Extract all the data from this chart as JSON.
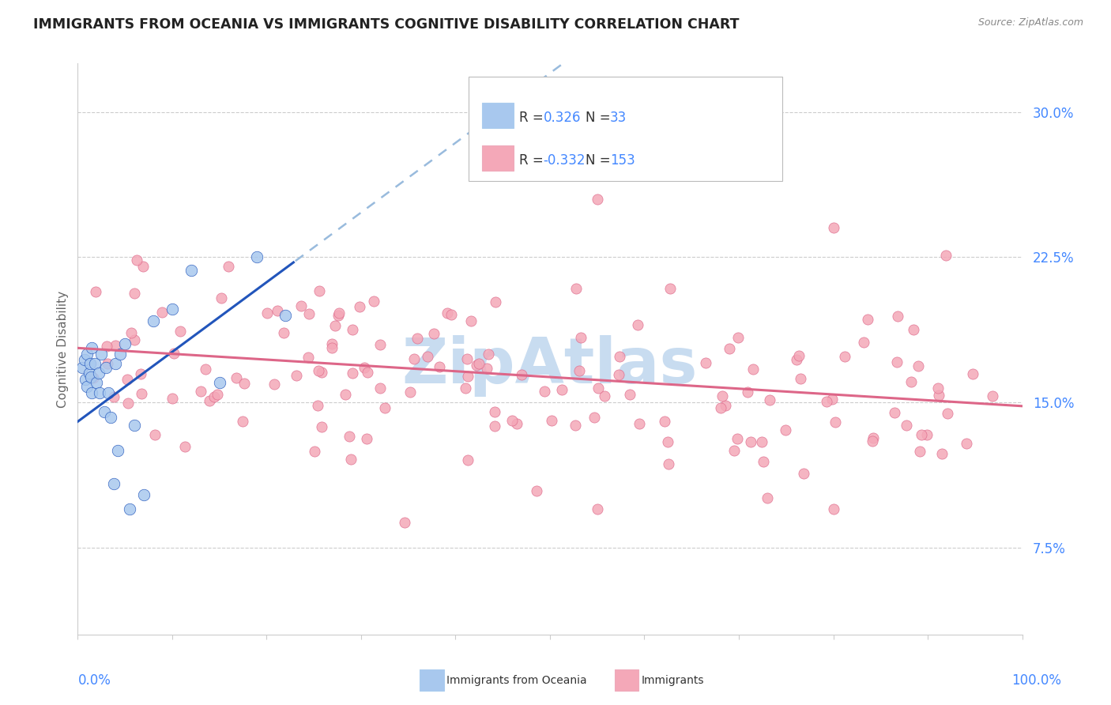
{
  "title": "IMMIGRANTS FROM OCEANIA VS IMMIGRANTS COGNITIVE DISABILITY CORRELATION CHART",
  "source": "Source: ZipAtlas.com",
  "ylabel": "Cognitive Disability",
  "xlim": [
    0.0,
    1.0
  ],
  "ylim": [
    0.03,
    0.325
  ],
  "ytick_vals": [
    0.075,
    0.15,
    0.225,
    0.3
  ],
  "ytick_labels": [
    "7.5%",
    "15.0%",
    "22.5%",
    "30.0%"
  ],
  "blue_R": 0.326,
  "blue_N": 33,
  "pink_R": -0.332,
  "pink_N": 153,
  "blue_color": "#A8C8EE",
  "pink_color": "#F4A8B8",
  "blue_trend_color": "#2255BB",
  "pink_trend_color": "#DD6688",
  "dashed_color": "#99BBDD",
  "label_color": "#4488FF",
  "watermark_color": "#C8DCF0",
  "grid_color": "#CCCCCC",
  "spine_color": "#CCCCCC",
  "ylabel_color": "#666666",
  "title_color": "#222222",
  "source_color": "#888888"
}
